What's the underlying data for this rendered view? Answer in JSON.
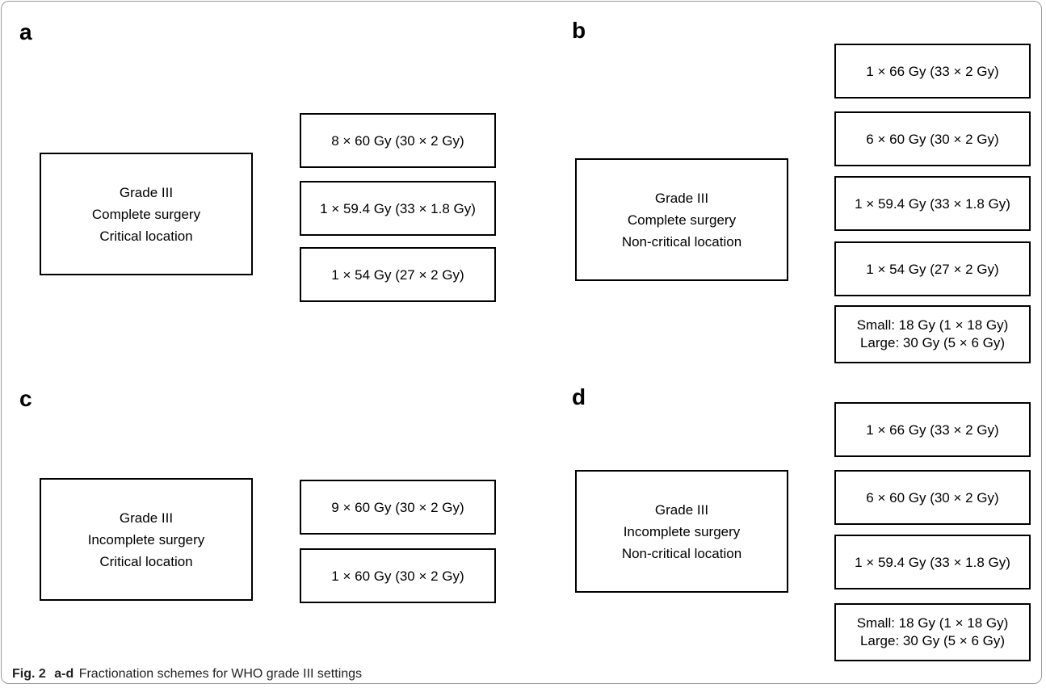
{
  "panels": {
    "a": {
      "letter": "a",
      "condition": [
        "Grade III",
        "Complete surgery",
        "Critical location"
      ],
      "options": [
        [
          "8 × 60 Gy (30 × 2 Gy)"
        ],
        [
          "1 × 59.4 Gy (33 × 1.8 Gy)"
        ],
        [
          "1 × 54 Gy (27 × 2 Gy)"
        ]
      ]
    },
    "b": {
      "letter": "b",
      "condition": [
        "Grade III",
        "Complete surgery",
        "Non-critical location"
      ],
      "options": [
        [
          "1 × 66 Gy (33 × 2 Gy)"
        ],
        [
          "6 × 60 Gy (30 × 2 Gy)"
        ],
        [
          "1 × 59.4 Gy (33 × 1.8 Gy)"
        ],
        [
          "1 × 54 Gy (27 × 2 Gy)"
        ],
        [
          "Small: 18 Gy (1 × 18 Gy)",
          "Large: 30 Gy (5 × 6 Gy)"
        ]
      ]
    },
    "c": {
      "letter": "c",
      "condition": [
        "Grade III",
        "Incomplete surgery",
        "Critical location"
      ],
      "options": [
        [
          "9 × 60 Gy (30 × 2 Gy)"
        ],
        [
          "1 × 60 Gy (30 × 2 Gy)"
        ]
      ]
    },
    "d": {
      "letter": "d",
      "condition": [
        "Grade III",
        "Incomplete surgery",
        "Non-critical location"
      ],
      "options": [
        [
          "1 × 66 Gy (33 × 2 Gy)"
        ],
        [
          "6 × 60 Gy (30 × 2 Gy)"
        ],
        [
          "1 × 59.4 Gy (33 × 1.8 Gy)"
        ],
        [
          "Small: 18 Gy (1 × 18 Gy)",
          "Large: 30 Gy (5 × 6 Gy)"
        ]
      ]
    }
  },
  "caption": {
    "lead": "Fig. 2",
    "panels": "a-d",
    "text": "Fractionation schemes for WHO grade III settings"
  }
}
